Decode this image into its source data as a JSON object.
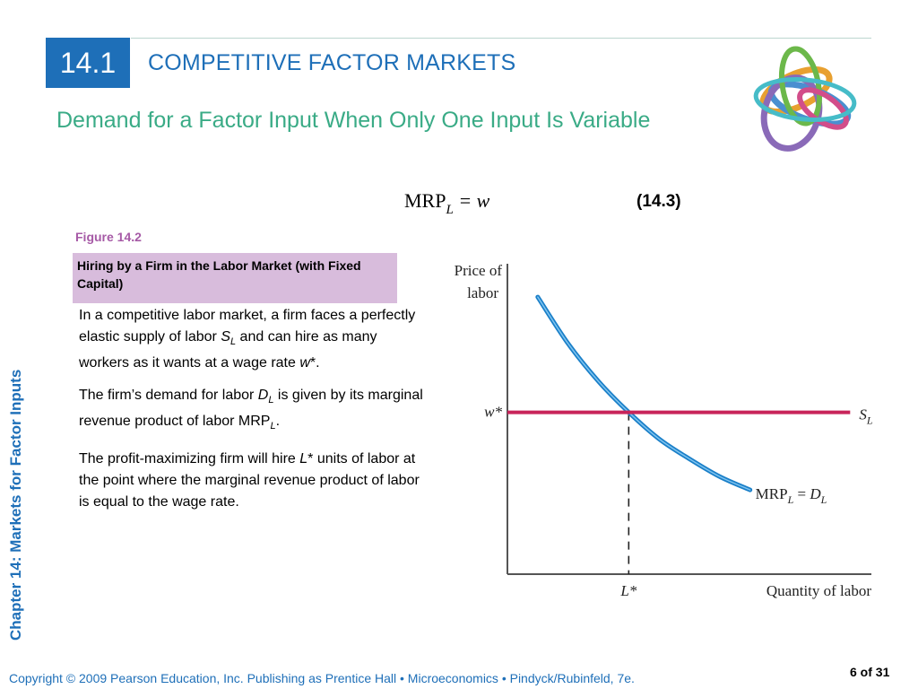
{
  "section": {
    "number": "14.1",
    "title": "COMPETITIVE FACTOR MARKETS"
  },
  "subtitle": "Demand for a Factor Input When Only One Input Is Variable",
  "equation": {
    "lhs": "MRP",
    "subscript": "L",
    "rhs": "= w",
    "number": "(14.3)"
  },
  "figure": {
    "label": "Figure 14.2",
    "caption": "Hiring by a Firm in the Labor Market (with Fixed Capital)"
  },
  "paragraphs": [
    {
      "pre": "In a competitive labor market, a firm faces a perfectly elastic supply of labor ",
      "i1": "S",
      "sub1": "L",
      "post": " and can hire as many workers as it wants at a wage rate ",
      "i2": "w",
      "end": "*."
    },
    {
      "pre": "The firm’s demand for labor ",
      "i1": "D",
      "sub1": "L",
      "post": " is given by its marginal revenue product of labor MRP",
      "sub2": "L",
      "end": "."
    },
    {
      "pre": "The profit-maximizing firm will hire ",
      "i1": "L",
      "post": "* units of labor at the point where the marginal revenue product of labor is equal to the wage rate."
    }
  ],
  "vertical_title": "Chapter 14: Markets for Factor Inputs",
  "footer": "Copyright © 2009 Pearson Education, Inc. Publishing as Prentice Hall  •  Microeconomics  •  Pindyck/Rubinfeld, 7e.",
  "page_number": "6 of 31",
  "colors": {
    "accent_blue": "#1e6fb8",
    "subtitle_green": "#3aab86",
    "demand_curve": "#3b9fdc",
    "supply_line": "#c8245a",
    "caption_bg": "#d8bcdc"
  },
  "chart_data": {
    "type": "line",
    "ylabel": "Price of labor",
    "xlabel": "Quantity of labor",
    "x_tick_labels": [
      "L*"
    ],
    "y_tick_labels": [
      "w*"
    ],
    "series": [
      {
        "name": "S_L",
        "label_main": "S",
        "label_sub": "L",
        "kind": "horizontal",
        "x": [
          0,
          1.13
        ],
        "y": [
          0.73,
          0.73
        ]
      },
      {
        "name": "MRP_L = D_L",
        "label_main": "MRP",
        "label_sub": "L",
        "label_mid": " = ",
        "label_main2": "D",
        "label_sub2": "L",
        "kind": "curve",
        "x": [
          0.1,
          0.2,
          0.3,
          0.4,
          0.5,
          0.6,
          0.7,
          0.8
        ],
        "y": [
          1.25,
          1.04,
          0.87,
          0.73,
          0.61,
          0.52,
          0.44,
          0.38
        ]
      }
    ],
    "intersection": {
      "x": 0.4,
      "y": 0.73
    },
    "xlim": [
      0,
      1.2
    ],
    "ylim": [
      0,
      1.4
    ]
  }
}
